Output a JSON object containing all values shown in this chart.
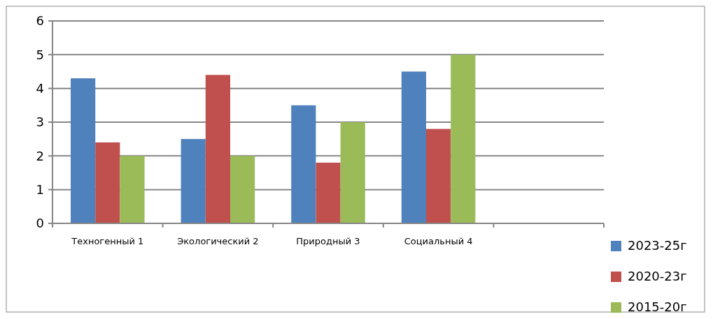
{
  "chart_data": {
    "type": "bar",
    "categories": [
      "Техногенный  1",
      "Экологический 2",
      "Природный 3",
      "Социальный 4",
      null
    ],
    "series": [
      {
        "name": "2023-25г",
        "color": "#4f81bd",
        "values": [
          4.3,
          2.5,
          3.5,
          4.5,
          null
        ]
      },
      {
        "name": "2020-23г",
        "color": "#c0504d",
        "values": [
          2.4,
          4.4,
          1.8,
          2.8,
          null
        ]
      },
      {
        "name": "2015-20г",
        "color": "#9bbb59",
        "values": [
          2,
          2,
          3,
          5,
          null
        ]
      }
    ],
    "ylim": [
      0,
      6
    ],
    "yticks": [
      0,
      1,
      2,
      3,
      4,
      5,
      6
    ],
    "grid": "y",
    "legend": "bottom right"
  }
}
